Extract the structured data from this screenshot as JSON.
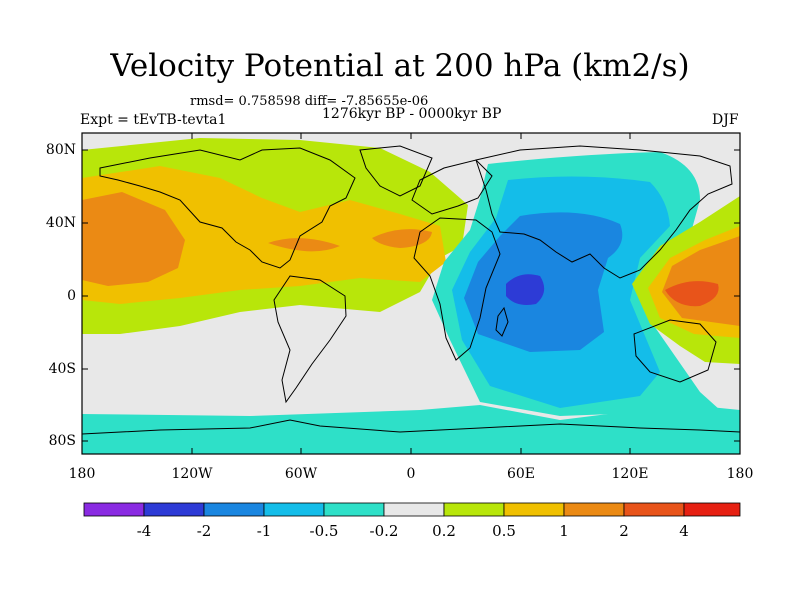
{
  "title": "Velocity Potential at 200 hPa (km2/s)",
  "stats_text": "rmsd= 0.758598 diff= -7.85655e-06",
  "period_text": "1276kyr BP - 0000kyr BP",
  "experiment_text": "Expt = tEvTB-tevta1",
  "season_text": "DJF",
  "latitude_labels": [
    "80N",
    "40N",
    "0",
    "40S",
    "80S"
  ],
  "longitude_labels": [
    "180",
    "120W",
    "60W",
    "0",
    "60E",
    "120E",
    "180"
  ],
  "colorbar": {
    "labels": [
      "-4",
      "-2",
      "-1",
      "-0.5",
      "-0.2",
      "0.2",
      "0.5",
      "1",
      "2",
      "4"
    ],
    "colors": [
      "#8a2be2",
      "#2d3bd6",
      "#1a86e0",
      "#14bde9",
      "#2ee0c8",
      "#e8e8e8",
      "#b8e60a",
      "#f0c000",
      "#eb8a14",
      "#e8541a",
      "#e62012"
    ]
  },
  "palette": {
    "ocean_gray": "#e8e8e8",
    "teal": "#2ee0c8",
    "cyan": "#14bde9",
    "blue": "#1a86e0",
    "dark_blue": "#2d3bd6",
    "yellow_green": "#b8e60a",
    "gold": "#f0c000",
    "orange": "#eb8a14",
    "red_orange": "#e8541a",
    "coastline": "#000000"
  }
}
